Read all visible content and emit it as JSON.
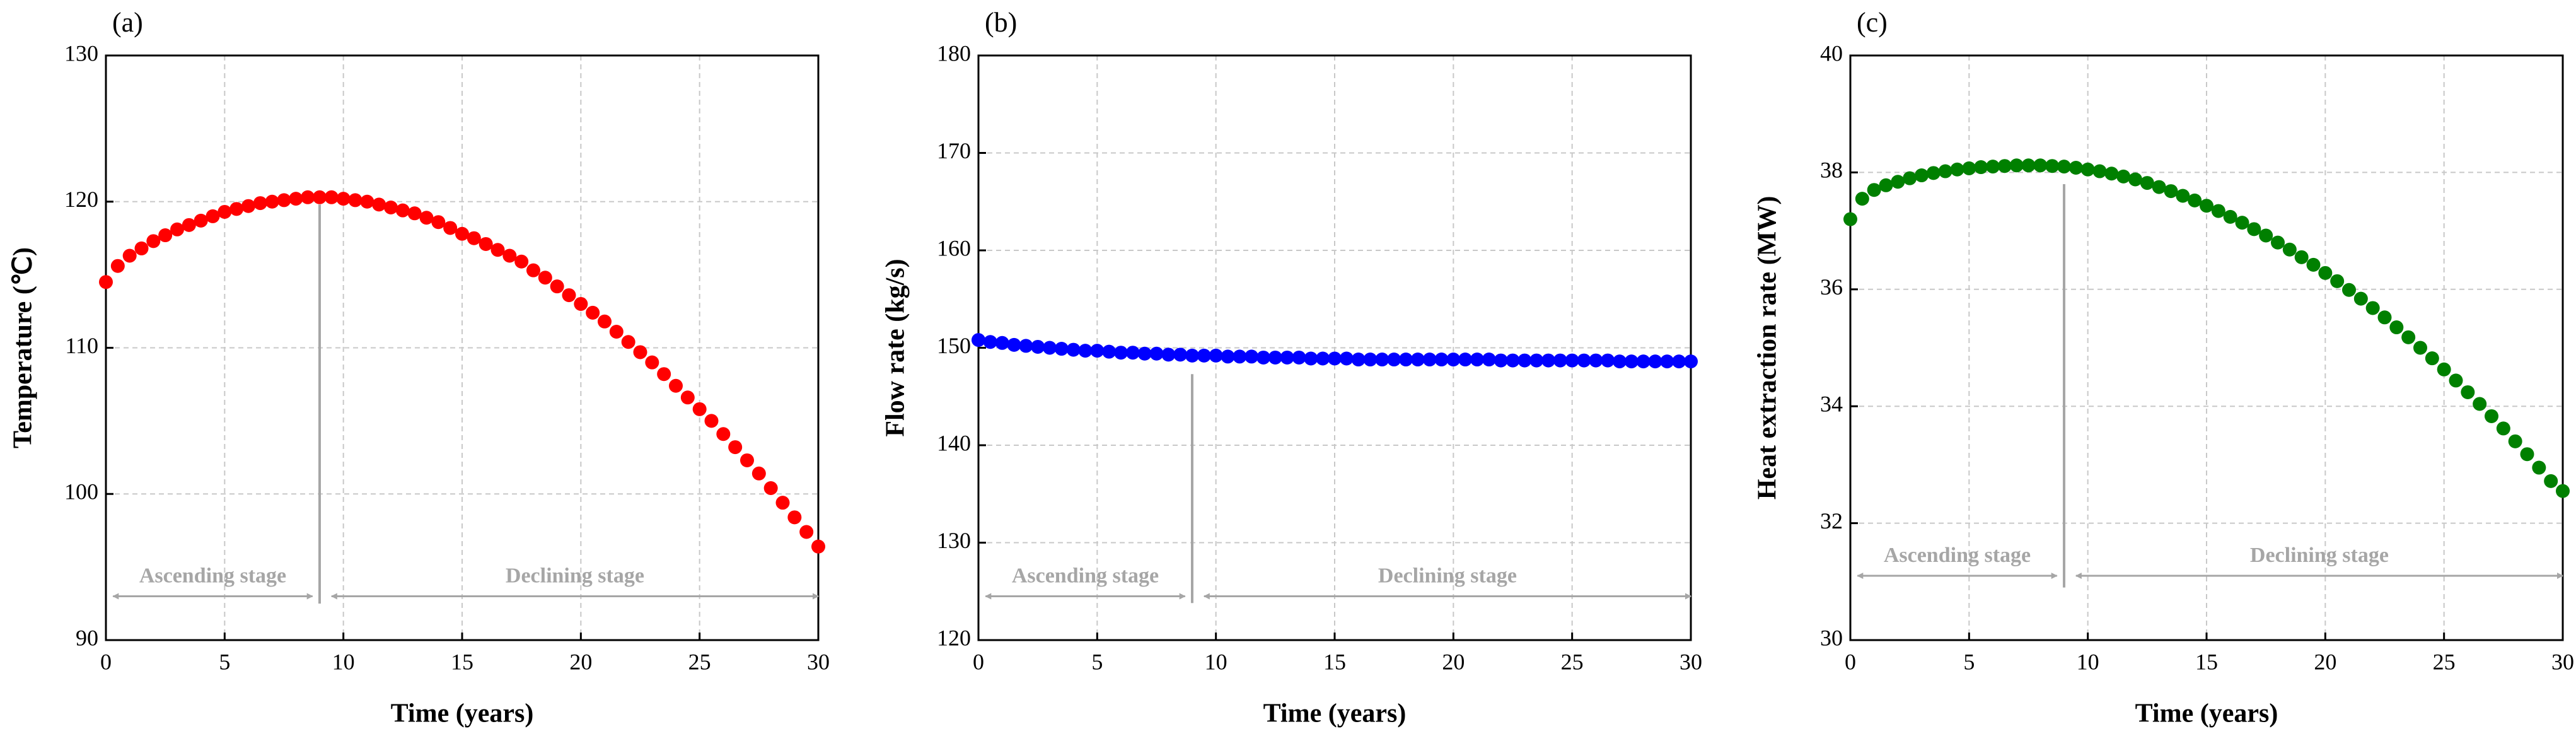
{
  "chart_data": [
    {
      "type": "scatter",
      "panel_label": "(a)",
      "xlabel": "Time (years)",
      "ylabel": "Temperature (℃)",
      "color": "#ff0000",
      "grid": true,
      "xlim": [
        0,
        30
      ],
      "xticks": [
        0,
        5,
        10,
        15,
        20,
        25,
        30
      ],
      "ylim": [
        90,
        130
      ],
      "yticks": [
        90,
        100,
        110,
        120,
        130
      ],
      "x": [
        0,
        0.5,
        1,
        1.5,
        2,
        2.5,
        3,
        3.5,
        4,
        4.5,
        5,
        5.5,
        6,
        6.5,
        7,
        7.5,
        8,
        8.5,
        9,
        9.5,
        10,
        10.5,
        11,
        11.5,
        12,
        12.5,
        13,
        13.5,
        14,
        14.5,
        15,
        15.5,
        16,
        16.5,
        17,
        17.5,
        18,
        18.5,
        19,
        19.5,
        20,
        20.5,
        21,
        21.5,
        22,
        22.5,
        23,
        23.5,
        24,
        24.5,
        25,
        25.5,
        26,
        26.5,
        27,
        27.5,
        28,
        28.5,
        29,
        29.5,
        30
      ],
      "values": [
        114.5,
        115.6,
        116.3,
        116.8,
        117.3,
        117.7,
        118.1,
        118.4,
        118.7,
        119.0,
        119.3,
        119.5,
        119.7,
        119.9,
        120.0,
        120.1,
        120.2,
        120.3,
        120.3,
        120.3,
        120.2,
        120.1,
        120.0,
        119.8,
        119.6,
        119.4,
        119.2,
        118.9,
        118.6,
        118.2,
        117.8,
        117.5,
        117.1,
        116.7,
        116.3,
        115.9,
        115.3,
        114.8,
        114.2,
        113.6,
        113.0,
        112.4,
        111.8,
        111.1,
        110.4,
        109.7,
        109.0,
        108.2,
        107.4,
        106.6,
        105.8,
        105.0,
        104.1,
        103.2,
        102.3,
        101.4,
        100.4,
        99.4,
        98.4,
        97.4,
        96.4
      ],
      "divider": {
        "x": 9,
        "y": [
          92.5,
          119.8
        ]
      },
      "annotations": [
        {
          "text": "Ascending stage",
          "x": [
            0.3,
            8.7
          ],
          "y": 93
        },
        {
          "text": "Declining stage",
          "x": [
            9.5,
            30
          ],
          "y": 93
        }
      ]
    },
    {
      "type": "scatter",
      "panel_label": "(b)",
      "xlabel": "Time (years)",
      "ylabel": "Flow rate (kg/s)",
      "color": "#0000ff",
      "grid": true,
      "xlim": [
        0,
        30
      ],
      "xticks": [
        0,
        5,
        10,
        15,
        20,
        25,
        30
      ],
      "ylim": [
        120,
        180
      ],
      "yticks": [
        120,
        130,
        140,
        150,
        160,
        170,
        180
      ],
      "x": [
        0,
        0.5,
        1,
        1.5,
        2,
        2.5,
        3,
        3.5,
        4,
        4.5,
        5,
        5.5,
        6,
        6.5,
        7,
        7.5,
        8,
        8.5,
        9,
        9.5,
        10,
        10.5,
        11,
        11.5,
        12,
        12.5,
        13,
        13.5,
        14,
        14.5,
        15,
        15.5,
        16,
        16.5,
        17,
        17.5,
        18,
        18.5,
        19,
        19.5,
        20,
        20.5,
        21,
        21.5,
        22,
        22.5,
        23,
        23.5,
        24,
        24.5,
        25,
        25.5,
        26,
        26.5,
        27,
        27.5,
        28,
        28.5,
        29,
        29.5,
        30
      ],
      "values": [
        150.8,
        150.6,
        150.5,
        150.3,
        150.2,
        150.1,
        150.0,
        149.9,
        149.8,
        149.7,
        149.7,
        149.6,
        149.5,
        149.5,
        149.4,
        149.4,
        149.3,
        149.3,
        149.2,
        149.2,
        149.2,
        149.1,
        149.1,
        149.1,
        149.0,
        149.0,
        149.0,
        149.0,
        148.9,
        148.9,
        148.9,
        148.9,
        148.8,
        148.8,
        148.8,
        148.8,
        148.8,
        148.8,
        148.8,
        148.8,
        148.8,
        148.8,
        148.8,
        148.8,
        148.7,
        148.7,
        148.7,
        148.7,
        148.7,
        148.7,
        148.7,
        148.7,
        148.7,
        148.7,
        148.6,
        148.6,
        148.6,
        148.6,
        148.6,
        148.6,
        148.6
      ],
      "divider": {
        "x": 9,
        "y": [
          123.8,
          147.3
        ]
      },
      "annotations": [
        {
          "text": "Ascending stage",
          "x": [
            0.3,
            8.7
          ],
          "y": 124.5
        },
        {
          "text": "Declining stage",
          "x": [
            9.5,
            30
          ],
          "y": 124.5
        }
      ]
    },
    {
      "type": "scatter",
      "panel_label": "(c)",
      "xlabel": "Time (years)",
      "ylabel": "Heat extraction rate (MW)",
      "color": "#008000",
      "grid": true,
      "xlim": [
        0,
        30
      ],
      "xticks": [
        0,
        5,
        10,
        15,
        20,
        25,
        30
      ],
      "ylim": [
        30,
        40
      ],
      "yticks": [
        30,
        32,
        34,
        36,
        38,
        40
      ],
      "x": [
        0,
        0.5,
        1,
        1.5,
        2,
        2.5,
        3,
        3.5,
        4,
        4.5,
        5,
        5.5,
        6,
        6.5,
        7,
        7.5,
        8,
        8.5,
        9,
        9.5,
        10,
        10.5,
        11,
        11.5,
        12,
        12.5,
        13,
        13.5,
        14,
        14.5,
        15,
        15.5,
        16,
        16.5,
        17,
        17.5,
        18,
        18.5,
        19,
        19.5,
        20,
        20.5,
        21,
        21.5,
        22,
        22.5,
        23,
        23.5,
        24,
        24.5,
        25,
        25.5,
        26,
        26.5,
        27,
        27.5,
        28,
        28.5,
        29,
        29.5,
        30
      ],
      "values": [
        37.2,
        37.55,
        37.7,
        37.78,
        37.84,
        37.9,
        37.95,
        37.99,
        38.02,
        38.05,
        38.07,
        38.09,
        38.1,
        38.11,
        38.12,
        38.12,
        38.12,
        38.11,
        38.1,
        38.08,
        38.05,
        38.02,
        37.98,
        37.93,
        37.88,
        37.82,
        37.75,
        37.68,
        37.6,
        37.52,
        37.43,
        37.34,
        37.24,
        37.14,
        37.03,
        36.92,
        36.8,
        36.68,
        36.55,
        36.42,
        36.28,
        36.14,
        35.99,
        35.84,
        35.68,
        35.52,
        35.35,
        35.18,
        35.0,
        34.82,
        34.63,
        34.44,
        34.24,
        34.04,
        33.83,
        33.62,
        33.4,
        33.18,
        32.95,
        32.72,
        32.55
      ],
      "divider": {
        "x": 9,
        "y": [
          30.9,
          37.8
        ]
      },
      "annotations": [
        {
          "text": "Ascending stage",
          "x": [
            0.3,
            8.7
          ],
          "y": 31.1
        },
        {
          "text": "Declining stage",
          "x": [
            9.5,
            30
          ],
          "y": 31.1
        }
      ]
    }
  ]
}
